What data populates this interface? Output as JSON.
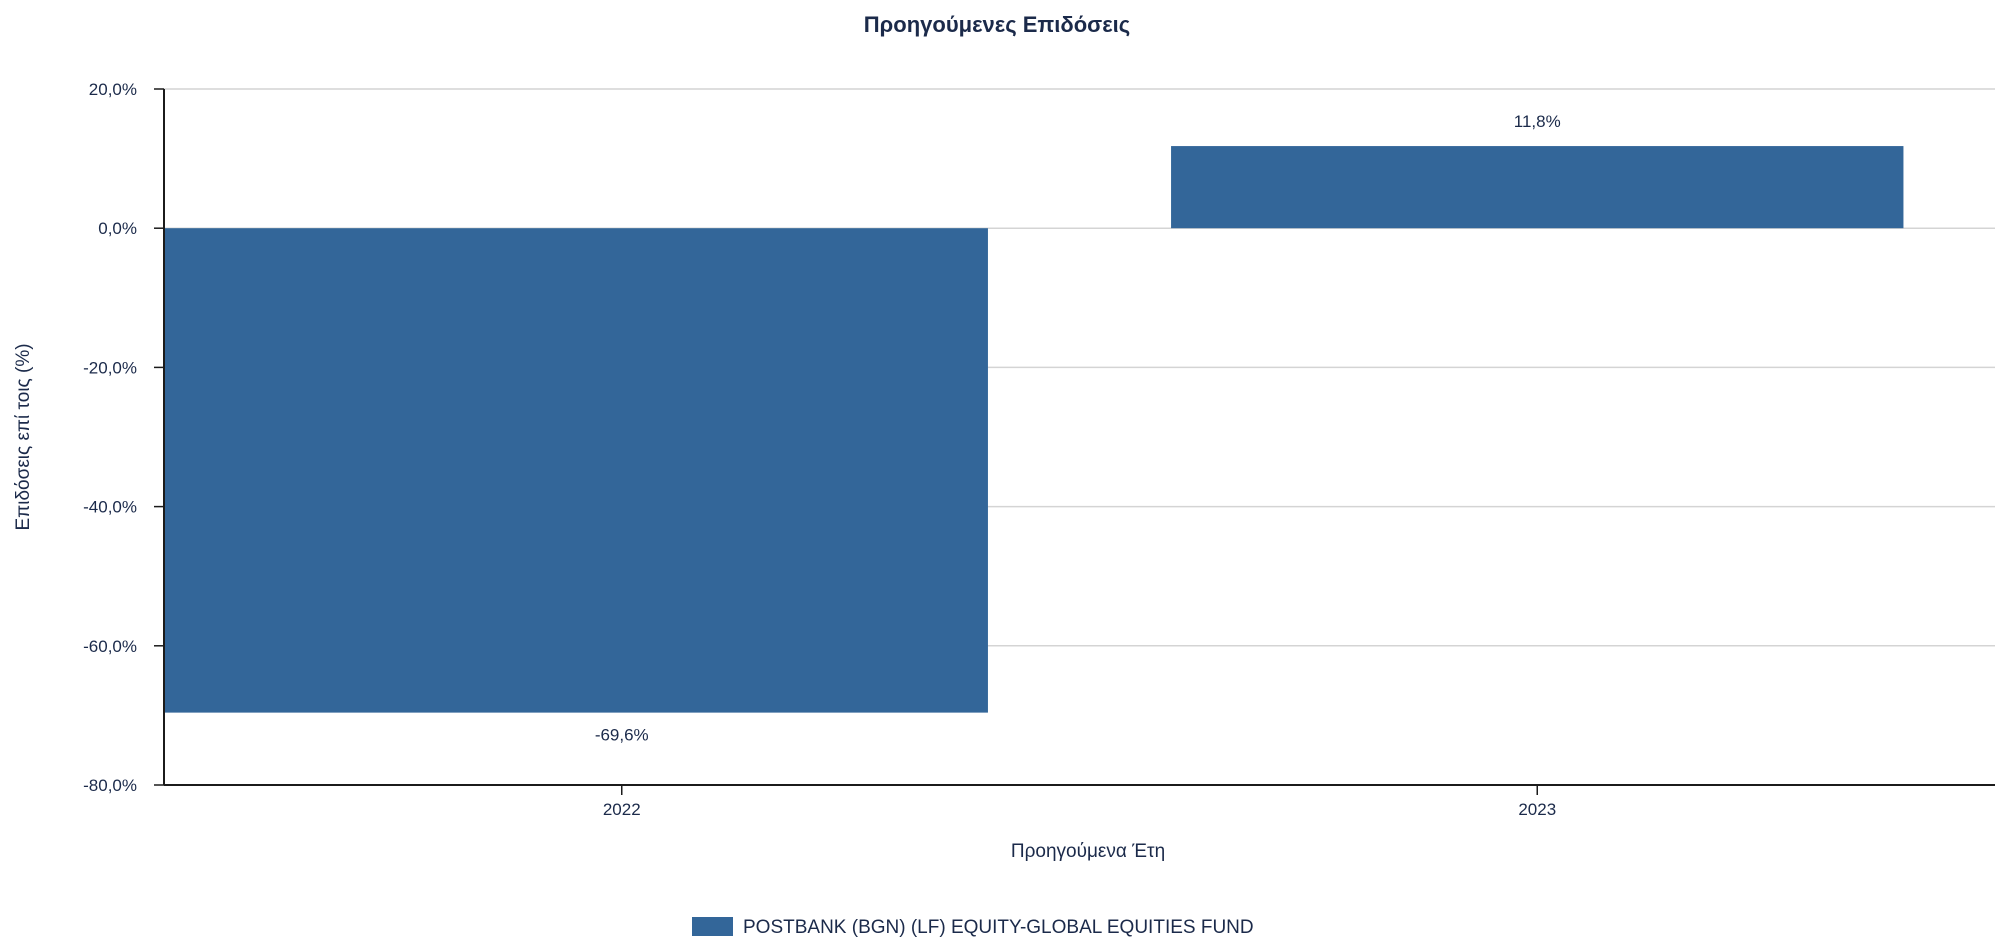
{
  "chart_data": {
    "type": "bar",
    "title": "Προηγούμενες Επιδόσεις",
    "xlabel": "Προηγούμενα Έτη",
    "ylabel": "Επιδόσεις επί τοις (%)",
    "categories": [
      "2022",
      "2023"
    ],
    "series": [
      {
        "name": "POSTBANK (BGN) (LF) EQUITY-GLOBAL EQUITIES FUND",
        "values": [
          -69.6,
          11.8
        ],
        "data_labels": [
          "-69,6%",
          "11,8%"
        ],
        "color": "#336699"
      }
    ],
    "ylim": [
      -80,
      20
    ],
    "yticks": [
      20,
      0,
      -20,
      -40,
      -60,
      -80
    ],
    "ytick_labels": [
      "20,0%",
      "0,0%",
      "-20,0%",
      "-40,0%",
      "-60,0%",
      "-80,0%"
    ],
    "grid": true,
    "legend_position": "bottom-center"
  }
}
